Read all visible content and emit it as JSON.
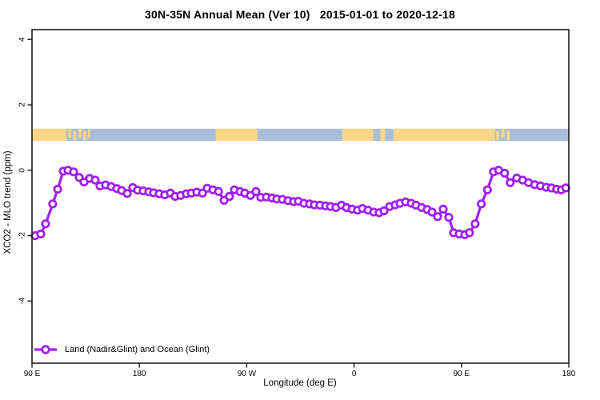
{
  "title": "30N-35N Annual Mean (Ver 10)   2015-01-01 to 2020-12-18",
  "colors": {
    "series_purple": "#A020F0",
    "land_yellow": "#FAD685",
    "ocean_blue": "#A9BEDA",
    "axis_black": "#1a1a1a",
    "marker_fill": "#ffffff"
  },
  "legend": {
    "label": "Land (Nadir&Glint) and Ocean (Glint)"
  },
  "chart_data": {
    "type": "line",
    "title": "30N-35N Annual Mean (Ver 10)   2015-01-01 to 2020-12-18",
    "xlabel": "Longitude (deg E)",
    "ylabel": "XCO2 - MLO trend (ppm)",
    "xlim": [
      0,
      450
    ],
    "ylim": [
      -5.9,
      4.3
    ],
    "grid": false,
    "legend_position": "bottom-left",
    "x_axis_note": "x is degrees east of 90E, wrapping 90E-180-90W-0-90E-180",
    "x_ticks": [
      {
        "pos": 0,
        "label": "90 E"
      },
      {
        "pos": 90,
        "label": "180"
      },
      {
        "pos": 180,
        "label": "90 W"
      },
      {
        "pos": 270,
        "label": "0"
      },
      {
        "pos": 360,
        "label": "90 E"
      },
      {
        "pos": 450,
        "label": "180"
      }
    ],
    "y_ticks": [
      {
        "pos": 4,
        "label": "4"
      },
      {
        "pos": 2,
        "label": "2"
      },
      {
        "pos": 0,
        "label": "0"
      },
      {
        "pos": -2,
        "label": "-2"
      },
      {
        "pos": -4,
        "label": "-4"
      }
    ],
    "land_ocean_band": {
      "y_range": [
        0.9,
        1.27
      ],
      "ocean_segments": [
        [
          0,
          450
        ]
      ],
      "land_segments": [
        [
          0,
          29
        ],
        [
          154,
          189
        ],
        [
          260,
          286
        ],
        [
          292,
          296
        ],
        [
          303,
          388
        ]
      ],
      "island_speckles": [
        [
          30.5,
          33
        ],
        [
          34.5,
          37
        ],
        [
          39,
          41.5
        ],
        [
          43,
          45.5
        ],
        [
          47,
          48.5
        ],
        [
          389,
          391.5
        ],
        [
          393.5,
          396
        ],
        [
          398,
          400.5
        ]
      ]
    },
    "series": [
      {
        "name": "Land (Nadir&Glint) and Ocean (Glint)",
        "marker": "open-circle",
        "x": [
          2.7,
          7.4,
          11.4,
          17.4,
          21.5,
          26.2,
          30.2,
          34.9,
          39.6,
          43.6,
          48.3,
          53.0,
          57.0,
          61.7,
          66.4,
          71.1,
          75.1,
          79.8,
          84.5,
          88.5,
          93.2,
          97.9,
          101.9,
          106.6,
          111.3,
          116.0,
          120.0,
          124.7,
          129.4,
          133.5,
          138.2,
          142.9,
          146.9,
          151.6,
          156.3,
          161.0,
          165.6,
          169.7,
          174.4,
          178.4,
          183.1,
          187.8,
          191.8,
          196.5,
          201.2,
          205.2,
          209.9,
          214.6,
          219.3,
          223.3,
          228.0,
          232.7,
          236.7,
          241.4,
          246.1,
          250.2,
          254.8,
          259.5,
          263.6,
          268.3,
          272.9,
          277.0,
          281.7,
          286.4,
          291.0,
          295.1,
          299.8,
          304.5,
          308.5,
          313.2,
          317.9,
          321.9,
          326.6,
          331.3,
          335.3,
          340.0,
          344.7,
          349.4,
          353.4,
          358.1,
          362.8,
          366.8,
          371.5,
          376.7,
          381.8,
          386.8,
          391.2,
          396.2,
          400.9,
          406.4,
          411.3,
          416.3,
          421.4,
          426.3,
          431.0,
          435.4,
          439.9,
          443.7,
          447.5
        ],
        "y": [
          -2.0,
          -1.95,
          -1.64,
          -1.03,
          -0.58,
          -0.03,
          0.0,
          -0.05,
          -0.22,
          -0.36,
          -0.25,
          -0.3,
          -0.48,
          -0.45,
          -0.5,
          -0.56,
          -0.62,
          -0.71,
          -0.53,
          -0.61,
          -0.63,
          -0.66,
          -0.69,
          -0.72,
          -0.75,
          -0.7,
          -0.8,
          -0.77,
          -0.72,
          -0.7,
          -0.67,
          -0.7,
          -0.55,
          -0.6,
          -0.65,
          -0.92,
          -0.8,
          -0.6,
          -0.65,
          -0.7,
          -0.77,
          -0.65,
          -0.83,
          -0.82,
          -0.85,
          -0.88,
          -0.89,
          -0.93,
          -0.96,
          -0.95,
          -1.01,
          -1.03,
          -1.06,
          -1.07,
          -1.09,
          -1.11,
          -1.14,
          -1.07,
          -1.14,
          -1.19,
          -1.22,
          -1.17,
          -1.22,
          -1.28,
          -1.3,
          -1.24,
          -1.11,
          -1.06,
          -1.01,
          -0.97,
          -1.01,
          -1.07,
          -1.14,
          -1.2,
          -1.28,
          -1.42,
          -1.19,
          -1.44,
          -1.91,
          -1.95,
          -1.97,
          -1.91,
          -1.64,
          -1.03,
          -0.6,
          -0.05,
          0.0,
          -0.09,
          -0.38,
          -0.24,
          -0.3,
          -0.38,
          -0.44,
          -0.48,
          -0.52,
          -0.54,
          -0.58,
          -0.6,
          -0.54
        ]
      }
    ]
  }
}
